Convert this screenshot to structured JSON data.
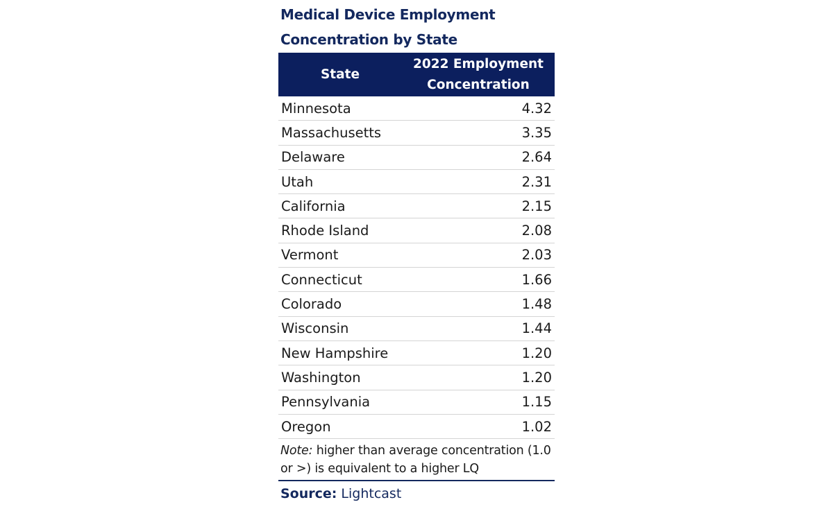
{
  "chart_data": {
    "type": "table",
    "title_line1": "Medical Device Employment",
    "title_line2": "Concentration by State",
    "columns": [
      "State",
      "2022 Employment",
      "Concentration"
    ],
    "rows": [
      {
        "state": "Minnesota",
        "value": "4.32"
      },
      {
        "state": "Massachusetts",
        "value": "3.35"
      },
      {
        "state": "Delaware",
        "value": "2.64"
      },
      {
        "state": "Utah",
        "value": "2.31"
      },
      {
        "state": "California",
        "value": "2.15"
      },
      {
        "state": "Rhode Island",
        "value": "2.08"
      },
      {
        "state": "Vermont",
        "value": "2.03"
      },
      {
        "state": "Connecticut",
        "value": "1.66"
      },
      {
        "state": "Colorado",
        "value": "1.48"
      },
      {
        "state": "Wisconsin",
        "value": "1.44"
      },
      {
        "state": "New Hampshire",
        "value": "1.20"
      },
      {
        "state": "Washington",
        "value": "1.20"
      },
      {
        "state": "Pennsylvania",
        "value": "1.15"
      },
      {
        "state": "Oregon",
        "value": "1.02"
      }
    ],
    "note_label": "Note:",
    "note_text": " higher than average concentration (1.0 or >) is equivalent to a higher LQ",
    "source_label": "Source:",
    "source_text": " Lightcast",
    "colors": {
      "header_bg": "#0c1f5e",
      "title": "#13285e",
      "row_border": "#d4d4d4"
    }
  }
}
